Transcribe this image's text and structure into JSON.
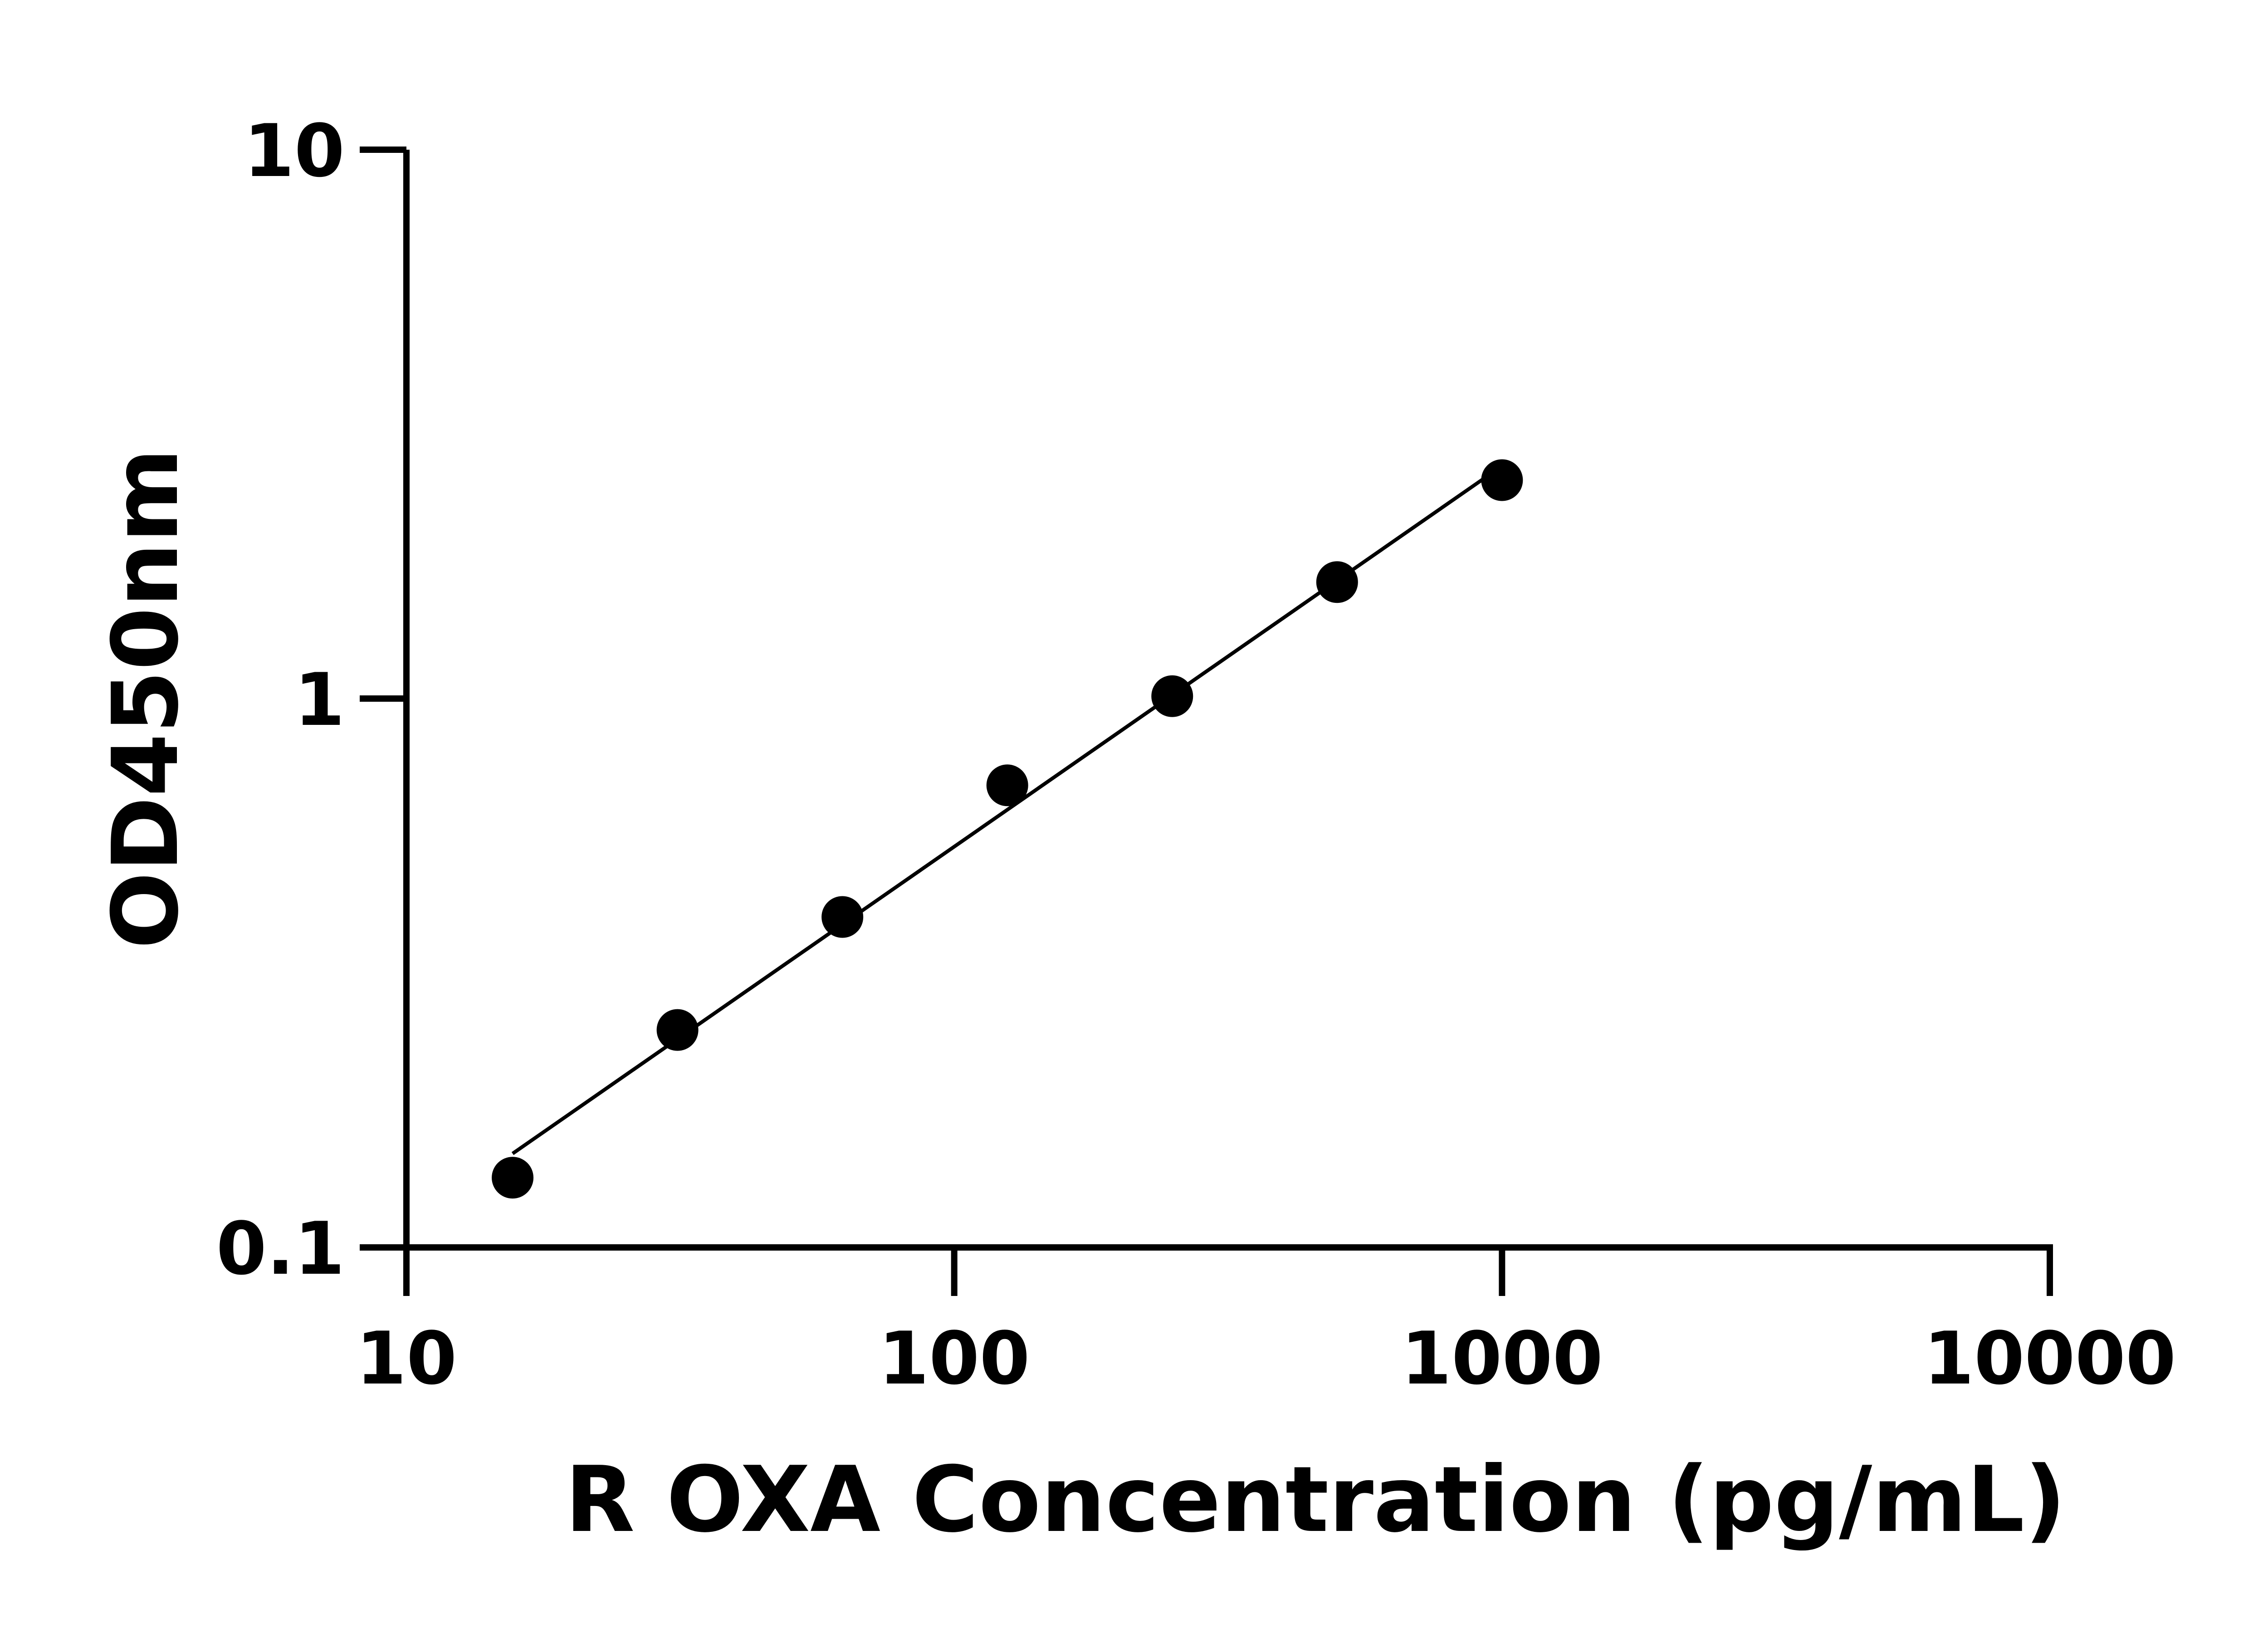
{
  "chart_data": {
    "type": "scatter",
    "title": "",
    "xlabel": "R OXA Concentration (pg/mL)",
    "ylabel": "OD450nm",
    "x_scale": "log",
    "y_scale": "log",
    "xlim": [
      10,
      10000
    ],
    "ylim": [
      0.1,
      10
    ],
    "x_ticks": [
      "10",
      "100",
      "1000",
      "10000"
    ],
    "y_ticks": [
      "0.1",
      "1",
      "10"
    ],
    "grid": false,
    "legend": "none",
    "fit_line": "log-log linear fit",
    "series": [
      {
        "x": [
          15.625,
          31.25,
          62.5,
          125,
          250,
          500,
          1000
        ],
        "y": [
          0.134,
          0.249,
          0.4,
          0.695,
          1.01,
          1.63,
          2.5
        ]
      }
    ],
    "colors": {
      "marker": "#000000",
      "axis": "#000000"
    }
  }
}
